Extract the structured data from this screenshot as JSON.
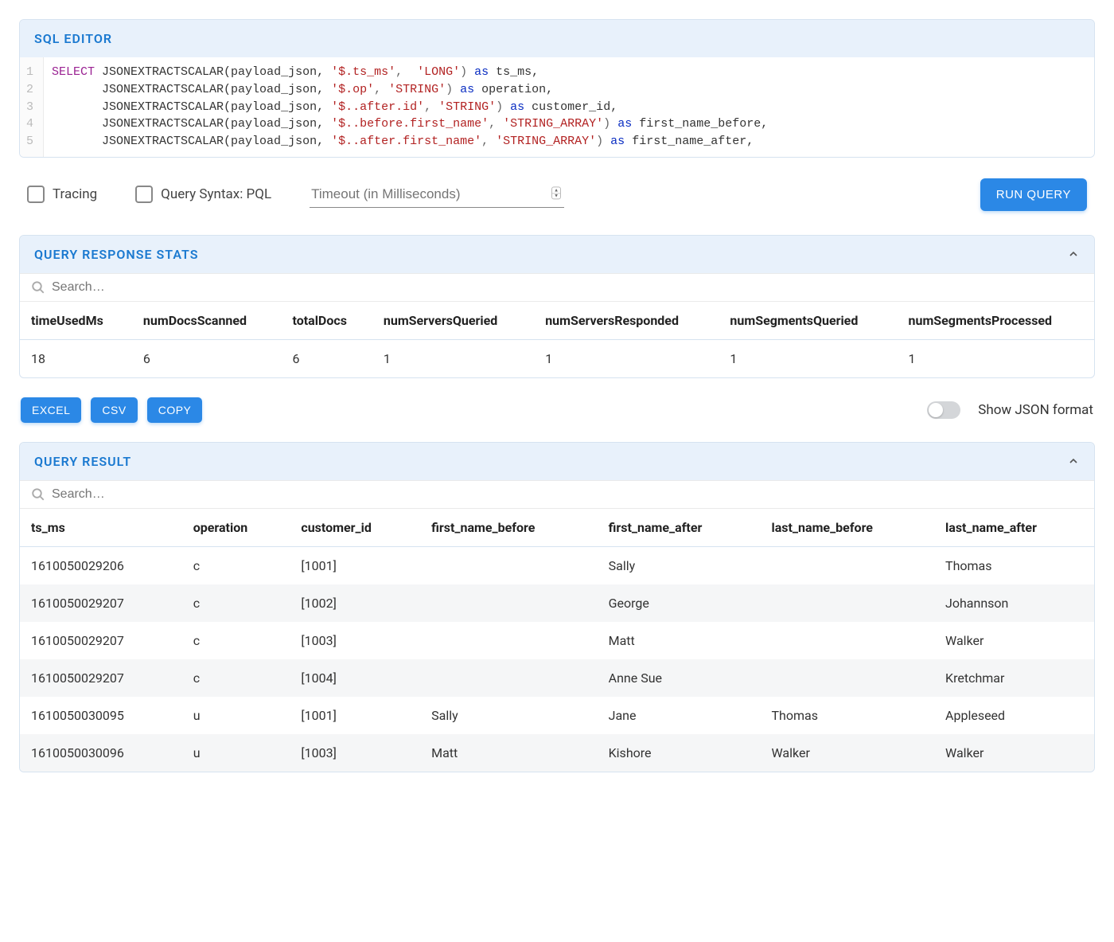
{
  "sql_editor": {
    "title": "SQL EDITOR",
    "lines": [
      {
        "n": "1",
        "tokens": [
          {
            "t": "SELECT ",
            "c": "kw"
          },
          {
            "t": "JSONEXTRACTSCALAR(payload_json, ",
            "c": "fn"
          },
          {
            "t": "'$.ts_ms'",
            "c": "str"
          },
          {
            "t": ",  ",
            "c": "op"
          },
          {
            "t": "'LONG'",
            "c": "str"
          },
          {
            "t": ") ",
            "c": "op"
          },
          {
            "t": "as",
            "c": "as"
          },
          {
            "t": " ts_ms,",
            "c": "fn"
          }
        ]
      },
      {
        "n": "2",
        "tokens": [
          {
            "t": "       JSONEXTRACTSCALAR(payload_json, ",
            "c": "fn"
          },
          {
            "t": "'$.op'",
            "c": "str"
          },
          {
            "t": ", ",
            "c": "op"
          },
          {
            "t": "'STRING'",
            "c": "str"
          },
          {
            "t": ") ",
            "c": "op"
          },
          {
            "t": "as",
            "c": "as"
          },
          {
            "t": " operation,",
            "c": "fn"
          }
        ]
      },
      {
        "n": "3",
        "tokens": [
          {
            "t": "       JSONEXTRACTSCALAR(payload_json, ",
            "c": "fn"
          },
          {
            "t": "'$..after.id'",
            "c": "str"
          },
          {
            "t": ", ",
            "c": "op"
          },
          {
            "t": "'STRING'",
            "c": "str"
          },
          {
            "t": ") ",
            "c": "op"
          },
          {
            "t": "as",
            "c": "as"
          },
          {
            "t": " customer_id,",
            "c": "fn"
          }
        ]
      },
      {
        "n": "4",
        "tokens": [
          {
            "t": "       JSONEXTRACTSCALAR(payload_json, ",
            "c": "fn"
          },
          {
            "t": "'$..before.first_name'",
            "c": "str"
          },
          {
            "t": ", ",
            "c": "op"
          },
          {
            "t": "'STRING_ARRAY'",
            "c": "str"
          },
          {
            "t": ") ",
            "c": "op"
          },
          {
            "t": "as",
            "c": "as"
          },
          {
            "t": " first_name_before,",
            "c": "fn"
          }
        ]
      },
      {
        "n": "5",
        "tokens": [
          {
            "t": "       JSONEXTRACTSCALAR(payload_json, ",
            "c": "fn"
          },
          {
            "t": "'$..after.first_name'",
            "c": "str"
          },
          {
            "t": ", ",
            "c": "op"
          },
          {
            "t": "'STRING_ARRAY'",
            "c": "str"
          },
          {
            "t": ") ",
            "c": "op"
          },
          {
            "t": "as",
            "c": "as"
          },
          {
            "t": " first_name_after,",
            "c": "fn"
          }
        ]
      }
    ]
  },
  "controls": {
    "tracing_label": "Tracing",
    "pql_label": "Query Syntax: PQL",
    "timeout_placeholder": "Timeout (in Milliseconds)",
    "run_label": "RUN QUERY"
  },
  "stats": {
    "title": "QUERY RESPONSE STATS",
    "search_placeholder": "Search…",
    "columns": [
      "timeUsedMs",
      "numDocsScanned",
      "totalDocs",
      "numServersQueried",
      "numServersResponded",
      "numSegmentsQueried",
      "numSegmentsProcessed"
    ],
    "row": [
      "18",
      "6",
      "6",
      "1",
      "1",
      "1",
      "1"
    ]
  },
  "export": {
    "excel": "EXCEL",
    "csv": "CSV",
    "copy": "COPY",
    "toggle_label": "Show JSON format"
  },
  "result": {
    "title": "QUERY RESULT",
    "search_placeholder": "Search…",
    "columns": [
      "ts_ms",
      "operation",
      "customer_id",
      "first_name_before",
      "first_name_after",
      "last_name_before",
      "last_name_after"
    ],
    "rows": [
      [
        "1610050029206",
        "c",
        "[1001]",
        "",
        "Sally",
        "",
        "Thomas"
      ],
      [
        "1610050029207",
        "c",
        "[1002]",
        "",
        "George",
        "",
        "Johannson"
      ],
      [
        "1610050029207",
        "c",
        "[1003]",
        "",
        "Matt",
        "",
        "Walker"
      ],
      [
        "1610050029207",
        "c",
        "[1004]",
        "",
        "Anne Sue",
        "",
        "Kretchmar"
      ],
      [
        "1610050030095",
        "u",
        "[1001]",
        "Sally",
        "Jane",
        "Thomas",
        "Appleseed"
      ],
      [
        "1610050030096",
        "u",
        "[1003]",
        "Matt",
        "Kishore",
        "Walker",
        "Walker"
      ]
    ]
  }
}
